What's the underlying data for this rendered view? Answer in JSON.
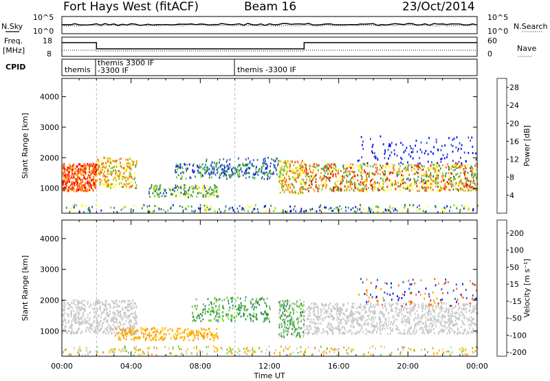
{
  "header": {
    "station": "Fort Hays West (fitACF)",
    "beam": "Beam 16",
    "date": "23/Oct/2014"
  },
  "summary": {
    "nsky_label": "N.Sky",
    "nsearch_label": "N.Search",
    "nsky_ticks": [
      "10^5",
      "10^0"
    ],
    "nsearch_ticks": [
      "10^5",
      "10^0"
    ],
    "freq_label_line1": "Freq.",
    "freq_label_line2": "[MHz]",
    "freq_ticks": [
      "18",
      "8"
    ],
    "nave_label": "Nave",
    "nave_ticks": [
      "60",
      "0"
    ],
    "cpid_label": "CPID",
    "cpid_segments": [
      {
        "line1": "themis",
        "line2": ""
      },
      {
        "line1": "themis 3300 IF",
        "line2": "-3300 IF"
      },
      {
        "line1": "themis -3300 IF",
        "line2": ""
      }
    ]
  },
  "chart_data": [
    {
      "type": "heatmap",
      "name": "power",
      "ylabel": "Slant Range [km]",
      "xlabel": "Time UT",
      "x_ticks": [
        "00:00",
        "04:00",
        "08:00",
        "12:00",
        "16:00",
        "20:00",
        "00:00"
      ],
      "y_ticks": [
        1000,
        2000,
        3000,
        4000
      ],
      "xlim_hours": [
        0,
        24
      ],
      "ylim_km": [
        180,
        4600
      ],
      "colorbar_label": "Power [dB]",
      "colorbar_ticks": [
        4,
        8,
        12,
        16,
        20,
        24,
        28
      ],
      "colorbar_range": [
        0,
        30
      ],
      "colors": [
        "#0000ff",
        "#2a52be",
        "#2e8b57",
        "#66cc33",
        "#ffff00",
        "#ff9900",
        "#ff5500",
        "#ff0000"
      ],
      "frequency_change_hours": [
        2,
        10
      ]
    },
    {
      "type": "heatmap",
      "name": "velocity",
      "ylabel": "Slant Range [km]",
      "xlabel": "Time UT",
      "x_ticks": [
        "00:00",
        "04:00",
        "08:00",
        "12:00",
        "16:00",
        "20:00",
        "00:00"
      ],
      "y_ticks": [
        1000,
        2000,
        3000,
        4000
      ],
      "xlim_hours": [
        0,
        24
      ],
      "ylim_km": [
        180,
        4600
      ],
      "colorbar_label": "Velocity [m s⁻¹]",
      "colorbar_ticks": [
        200,
        100,
        50,
        15,
        -15,
        -50,
        -100,
        -200
      ],
      "colorbar_range": [
        -250,
        250
      ],
      "colors": [
        "#ff0000",
        "#ff5500",
        "#ff9900",
        "#ffbb00",
        "#c8c8c8",
        "#66cc33",
        "#2e8b57",
        "#2a52be",
        "#0000ff"
      ],
      "frequency_change_hours": [
        2,
        10
      ]
    }
  ]
}
